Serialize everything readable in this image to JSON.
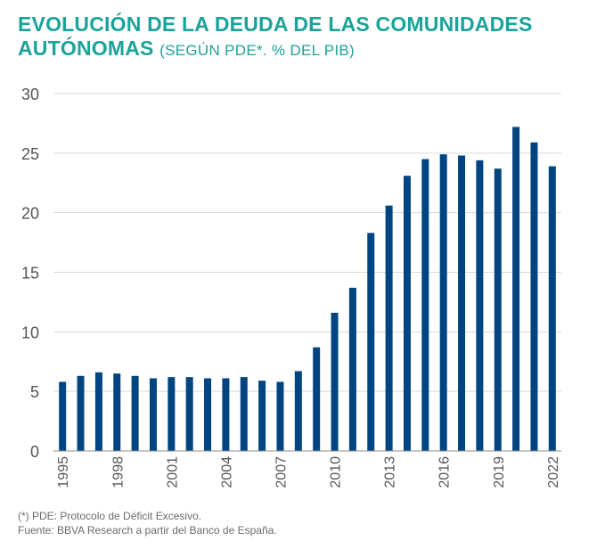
{
  "title": {
    "line1": "EVOLUCIÓN DE LA DEUDA DE LAS COMUNIDADES",
    "line2": "AUTÓNOMAS",
    "subtitle": "(SEGÚN PDE*. % DEL PIB)"
  },
  "footnotes": {
    "note": "(*) PDE: Protocolo de Déficit Excesivo.",
    "source": "Fuente: BBVA Research a partir del Banco de España."
  },
  "colors": {
    "title": "#1aa39a",
    "bar": "#004481",
    "grid": "#d9d9d9",
    "axis": "#8c8c8c",
    "text": "#555555"
  },
  "chart_data": {
    "type": "bar",
    "categories": [
      "1995",
      "1996",
      "1997",
      "1998",
      "1999",
      "2000",
      "2001",
      "2002",
      "2003",
      "2004",
      "2005",
      "2006",
      "2007",
      "2008",
      "2009",
      "2010",
      "2011",
      "2012",
      "2013",
      "2014",
      "2015",
      "2016",
      "2017",
      "2018",
      "2019",
      "2020",
      "2021",
      "2022"
    ],
    "values": [
      5.8,
      6.3,
      6.6,
      6.5,
      6.3,
      6.1,
      6.2,
      6.2,
      6.1,
      6.1,
      6.2,
      5.9,
      5.8,
      6.7,
      8.7,
      11.6,
      13.7,
      18.3,
      20.6,
      23.1,
      24.5,
      24.9,
      24.8,
      24.4,
      23.7,
      27.2,
      25.9,
      23.9
    ],
    "x_tick_labels": [
      "1995",
      "1998",
      "2001",
      "2004",
      "2007",
      "2010",
      "2013",
      "2016",
      "2019",
      "2022"
    ],
    "y_ticks": [
      0,
      5,
      10,
      15,
      20,
      25,
      30
    ],
    "ylim": [
      0,
      30
    ],
    "grid": true,
    "legend": "none",
    "xlabel": "",
    "ylabel": ""
  }
}
